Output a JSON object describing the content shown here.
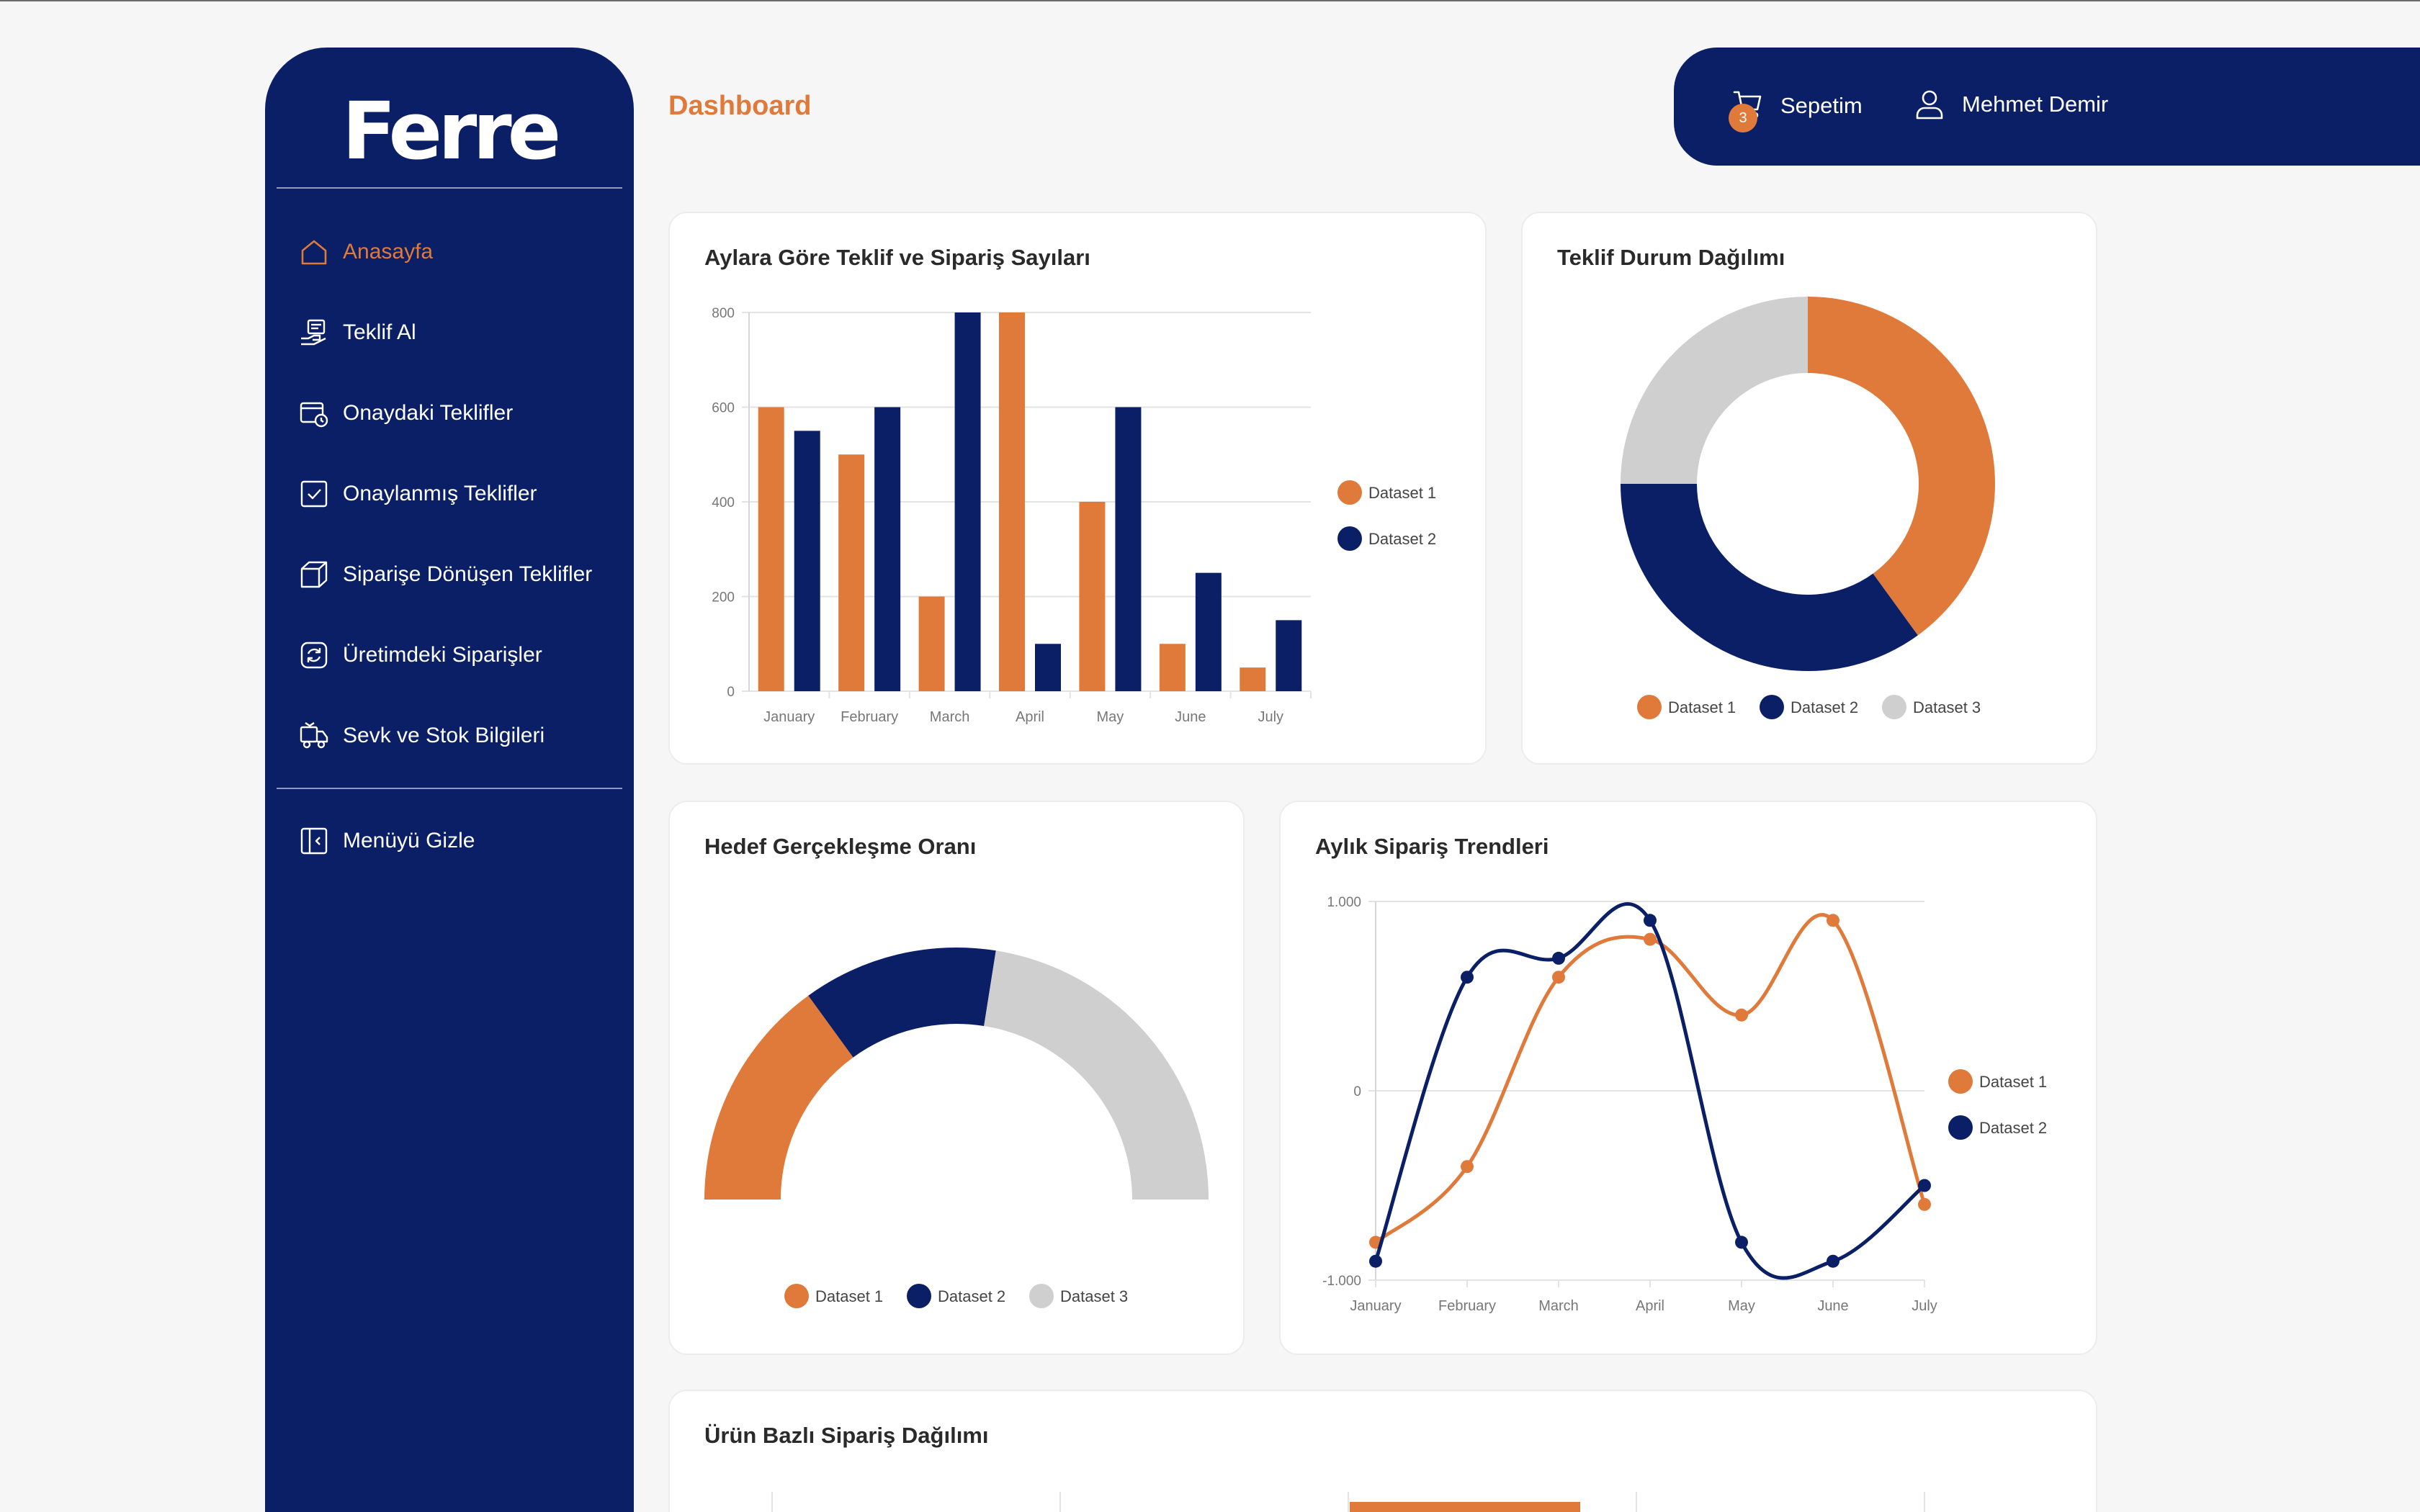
{
  "brand": {
    "logo": "Ferre"
  },
  "sidebar": {
    "items": [
      {
        "label": "Anasayfa",
        "icon": "home-icon",
        "active": true
      },
      {
        "label": "Teklif Al",
        "icon": "quote-request-icon",
        "active": false
      },
      {
        "label": "Onaydaki Teklifler",
        "icon": "pending-quotes-icon",
        "active": false
      },
      {
        "label": "Onaylanmış Teklifler",
        "icon": "approved-check-icon",
        "active": false
      },
      {
        "label": "Siparişe Dönüşen Teklifler",
        "icon": "box-icon",
        "active": false
      },
      {
        "label": "Üretimdeki Siparişler",
        "icon": "refresh-icon",
        "active": false
      },
      {
        "label": "Sevk ve Stok Bilgileri",
        "icon": "truck-icon",
        "active": false
      }
    ],
    "hide_menu_label": "Menüyü Gizle"
  },
  "header": {
    "title": "Dashboard",
    "cart_label": "Sepetim",
    "cart_count": "3",
    "user_name": "Mehmet Demir"
  },
  "colors": {
    "navy": "#0a1f66",
    "orange": "#e07a3b",
    "gray": "#cfcfcf"
  },
  "chart_data": [
    {
      "type": "bar",
      "title": "Aylara Göre Teklif ve Sipariş Sayıları",
      "categories": [
        "January",
        "February",
        "March",
        "April",
        "May",
        "June",
        "July"
      ],
      "series": [
        {
          "name": "Dataset 1",
          "color": "#e07a3b",
          "values": [
            600,
            500,
            200,
            800,
            400,
            100,
            50
          ]
        },
        {
          "name": "Dataset 2",
          "color": "#0a1f66",
          "values": [
            550,
            600,
            800,
            100,
            600,
            250,
            150
          ]
        }
      ],
      "ylim": [
        0,
        800
      ],
      "yticks": [
        "0",
        "200",
        "400",
        "600",
        "800"
      ],
      "grid": true,
      "legend": "right"
    },
    {
      "type": "pie",
      "title": "Teklif Durum Dağılımı",
      "labels": [
        "Dataset 1",
        "Dataset 2",
        "Dataset 3"
      ],
      "colors": [
        "#e07a3b",
        "#0a1f66",
        "#cfcfcf"
      ],
      "values": [
        40,
        35,
        25
      ],
      "legend": "bottom"
    },
    {
      "type": "pie",
      "title": "Hedef Gerçekleşme Oranı",
      "labels": [
        "Dataset 1",
        "Dataset 2",
        "Dataset 3"
      ],
      "colors": [
        "#e07a3b",
        "#0a1f66",
        "#cfcfcf"
      ],
      "values": [
        30,
        25,
        45
      ],
      "legend": "bottom"
    },
    {
      "type": "line",
      "title": "Aylık Sipariş Trendleri",
      "categories": [
        "January",
        "February",
        "March",
        "April",
        "May",
        "June",
        "July"
      ],
      "series": [
        {
          "name": "Dataset 1",
          "color": "#e07a3b",
          "values": [
            -800,
            -400,
            600,
            800,
            400,
            900,
            -600
          ]
        },
        {
          "name": "Dataset 2",
          "color": "#0a1f66",
          "values": [
            -900,
            600,
            700,
            900,
            -800,
            -900,
            -500
          ]
        }
      ],
      "ylim": [
        -1000,
        1000
      ],
      "yticks": [
        "-1.000",
        "0",
        "1.000"
      ],
      "grid": true,
      "legend": "right"
    },
    {
      "type": "bar",
      "title": "Ürün Bazlı Sipariş Dağılımı"
    }
  ]
}
